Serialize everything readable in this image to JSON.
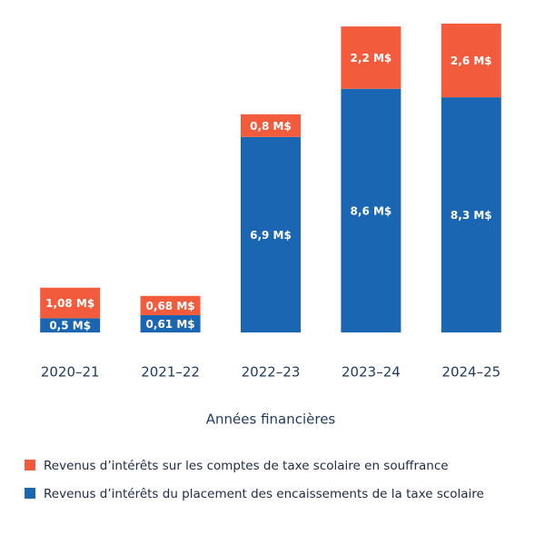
{
  "chart_data": {
    "type": "stacked_bar",
    "x_label": "Années financières",
    "categories": [
      "2020–21",
      "2021–22",
      "2022–23",
      "2023–24",
      "2024–25"
    ],
    "series": [
      {
        "name": "Revenus d’intérêts du placement des encaissements de la taxe scolaire",
        "color": "#1a66b3",
        "values": [
          0.5,
          0.61,
          6.9,
          8.6,
          8.3
        ],
        "value_labels": [
          "0,5 M$",
          "0,61 M$",
          "6,9 M$",
          "8,6 M$",
          "8,3 M$"
        ]
      },
      {
        "name": "Revenus d’intérêts sur les comptes de taxe scolaire en souffrance",
        "color": "#f25c3c",
        "values": [
          1.08,
          0.68,
          0.8,
          2.2,
          2.6
        ],
        "value_labels": [
          "1,08 M$",
          "0,68 M$",
          "0,8 M$",
          "2,2 M$",
          "2,6 M$"
        ]
      }
    ]
  }
}
